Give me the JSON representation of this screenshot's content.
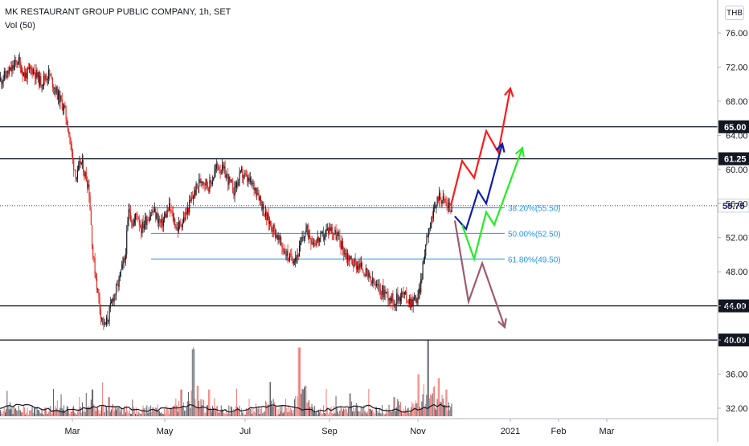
{
  "header": {
    "title": "MK RESTAURANT GROUP PUBLIC COMPANY, 1h, SET",
    "volume_label": "Vol (50)",
    "currency": "THB"
  },
  "chart_data": {
    "type": "candlestick",
    "ylim": [
      31,
      78
    ],
    "y_ticks": [
      "32.00",
      "36.00",
      "40.00",
      "44.00",
      "48.00",
      "52.00",
      "56.00",
      "60.00",
      "64.00",
      "68.00",
      "72.00",
      "76.00"
    ],
    "x_ticks": [
      {
        "label": "Mar",
        "t": 0.09
      },
      {
        "label": "May",
        "t": 0.205
      },
      {
        "label": "Jul",
        "t": 0.305
      },
      {
        "label": "Sep",
        "t": 0.41
      },
      {
        "label": "Nov",
        "t": 0.52
      },
      {
        "label": "2021",
        "t": 0.635
      },
      {
        "label": "Feb",
        "t": 0.695
      },
      {
        "label": "Mar",
        "t": 0.755
      }
    ],
    "price_path": [
      [
        0.0,
        70.5
      ],
      [
        0.012,
        71.5
      ],
      [
        0.022,
        72.8
      ],
      [
        0.03,
        71.0
      ],
      [
        0.04,
        71.8
      ],
      [
        0.05,
        70.2
      ],
      [
        0.06,
        71.2
      ],
      [
        0.07,
        69.0
      ],
      [
        0.08,
        67.0
      ],
      [
        0.085,
        64.5
      ],
      [
        0.09,
        61.0
      ],
      [
        0.095,
        59.0
      ],
      [
        0.1,
        61.0
      ],
      [
        0.105,
        59.5
      ],
      [
        0.11,
        58.0
      ],
      [
        0.115,
        50.0
      ],
      [
        0.12,
        46.5
      ],
      [
        0.125,
        43.0
      ],
      [
        0.13,
        41.5
      ],
      [
        0.135,
        43.0
      ],
      [
        0.14,
        45.0
      ],
      [
        0.145,
        46.0
      ],
      [
        0.15,
        48.0
      ],
      [
        0.155,
        49.5
      ],
      [
        0.16,
        55.5
      ],
      [
        0.165,
        53.5
      ],
      [
        0.17,
        55.0
      ],
      [
        0.175,
        53.0
      ],
      [
        0.18,
        54.0
      ],
      [
        0.19,
        55.2
      ],
      [
        0.2,
        53.5
      ],
      [
        0.21,
        55.5
      ],
      [
        0.22,
        53.0
      ],
      [
        0.23,
        54.5
      ],
      [
        0.24,
        57.0
      ],
      [
        0.25,
        59.0
      ],
      [
        0.26,
        58.0
      ],
      [
        0.27,
        60.5
      ],
      [
        0.28,
        59.5
      ],
      [
        0.29,
        57.5
      ],
      [
        0.3,
        59.5
      ],
      [
        0.31,
        58.5
      ],
      [
        0.32,
        57.5
      ],
      [
        0.33,
        54.5
      ],
      [
        0.34,
        53.0
      ],
      [
        0.35,
        51.0
      ],
      [
        0.36,
        49.5
      ],
      [
        0.37,
        50.0
      ],
      [
        0.38,
        53.0
      ],
      [
        0.39,
        51.5
      ],
      [
        0.4,
        52.0
      ],
      [
        0.41,
        53.2
      ],
      [
        0.42,
        52.0
      ],
      [
        0.43,
        50.0
      ],
      [
        0.44,
        49.0
      ],
      [
        0.45,
        48.5
      ],
      [
        0.46,
        47.0
      ],
      [
        0.47,
        46.0
      ],
      [
        0.48,
        45.5
      ],
      [
        0.49,
        44.5
      ],
      [
        0.5,
        45.5
      ],
      [
        0.51,
        44.5
      ],
      [
        0.52,
        45.0
      ],
      [
        0.525,
        48.0
      ],
      [
        0.53,
        52.0
      ],
      [
        0.535,
        54.0
      ],
      [
        0.54,
        55.0
      ],
      [
        0.545,
        57.0
      ],
      [
        0.55,
        56.5
      ],
      [
        0.555,
        56.0
      ],
      [
        0.56,
        55.5
      ],
      [
        0.562,
        55.75
      ]
    ],
    "volume_peaks": [
      [
        0.115,
        0.35
      ],
      [
        0.135,
        0.25
      ],
      [
        0.225,
        0.35
      ],
      [
        0.24,
        0.8
      ],
      [
        0.245,
        0.4
      ],
      [
        0.26,
        0.35
      ],
      [
        0.335,
        0.45
      ],
      [
        0.372,
        0.9
      ],
      [
        0.38,
        0.4
      ],
      [
        0.435,
        0.3
      ],
      [
        0.49,
        0.25
      ],
      [
        0.52,
        0.55
      ],
      [
        0.532,
        1.0
      ],
      [
        0.545,
        0.5
      ],
      [
        0.555,
        0.35
      ]
    ],
    "horizontal_levels": [
      {
        "value": 65.0,
        "label": "65.00"
      },
      {
        "value": 61.25,
        "label": "61.25"
      },
      {
        "value": 44.0,
        "label": "44.00"
      },
      {
        "value": 40.0,
        "label": "40.00"
      }
    ],
    "current_price": {
      "value": 55.75,
      "label": "55.75"
    },
    "fib_levels": [
      {
        "value": 55.5,
        "label": "38.20%(55.50)"
      },
      {
        "value": 52.5,
        "label": "50.00%(52.50)"
      },
      {
        "value": 49.5,
        "label": "61.80%(49.50)"
      }
    ],
    "scenario_paths": [
      {
        "color": "#ff1a1a",
        "points": [
          [
            0.561,
            55.75
          ],
          [
            0.575,
            61.0
          ],
          [
            0.59,
            59.0
          ],
          [
            0.605,
            64.5
          ],
          [
            0.62,
            62.0
          ],
          [
            0.635,
            69.5
          ]
        ]
      },
      {
        "color": "#0d1fa8",
        "points": [
          [
            0.566,
            54.5
          ],
          [
            0.58,
            53.0
          ],
          [
            0.595,
            57.5
          ],
          [
            0.605,
            56.0
          ],
          [
            0.625,
            63.0
          ]
        ]
      },
      {
        "color": "#22ee22",
        "points": [
          [
            0.575,
            53.5
          ],
          [
            0.59,
            49.5
          ],
          [
            0.605,
            55.0
          ],
          [
            0.615,
            53.5
          ],
          [
            0.65,
            62.5
          ]
        ]
      },
      {
        "color": "#a05a6a",
        "points": [
          [
            0.566,
            54.0
          ],
          [
            0.583,
            44.5
          ],
          [
            0.6,
            49.0
          ],
          [
            0.628,
            41.5
          ]
        ]
      }
    ],
    "colors": {
      "up": "#131722",
      "down": "#e0211b",
      "volume_up": "#ef5350",
      "volume_line": "#131722",
      "fib": "#2196f3",
      "level": "#131722",
      "grid": "#e0e3eb"
    }
  }
}
